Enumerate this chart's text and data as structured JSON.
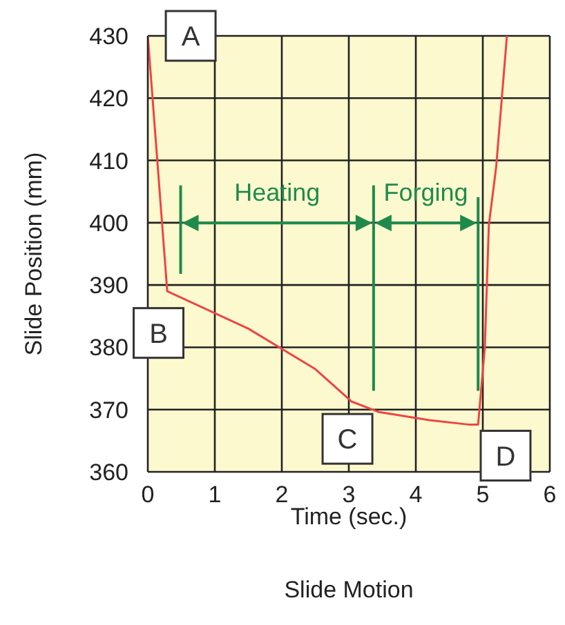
{
  "chart_data": {
    "type": "line",
    "title": "Slide Motion",
    "xlabel": "Time (sec.)",
    "ylabel": "Slide Position (mm)",
    "x": [
      0,
      0.29,
      1.5,
      2.5,
      3.04,
      3.45,
      4.2,
      4.78,
      4.93,
      5.03,
      5.09,
      5.2,
      5.36
    ],
    "values": [
      430,
      389,
      383,
      376.5,
      371.3,
      369.6,
      368.3,
      367.6,
      367.6,
      380,
      399.6,
      409,
      430
    ],
    "color": "#ee4444",
    "xlim": [
      0,
      6
    ],
    "xticks": [
      0,
      1,
      2,
      3,
      4,
      5,
      6
    ],
    "ylim": [
      360,
      430
    ],
    "yticks": [
      360,
      370,
      380,
      390,
      400,
      410,
      420,
      430
    ],
    "grid": true,
    "marker": "none",
    "ref_lines": [
      {
        "axis": "x",
        "value": 0.49,
        "color": "#1f8a4c"
      },
      {
        "axis": "x",
        "value": 3.37,
        "color": "#1f8a4c"
      },
      {
        "axis": "x",
        "value": 4.93,
        "color": "#1f8a4c"
      }
    ],
    "annotations": [
      {
        "text": "A",
        "x": 0.64,
        "y": 430
      },
      {
        "text": "B",
        "x": 0.16,
        "y": 382.3
      },
      {
        "text": "C",
        "x": 2.98,
        "y": 365.3
      },
      {
        "text": "D",
        "x": 5.34,
        "y": 362.6
      },
      "Heating",
      "Forging"
    ]
  }
}
